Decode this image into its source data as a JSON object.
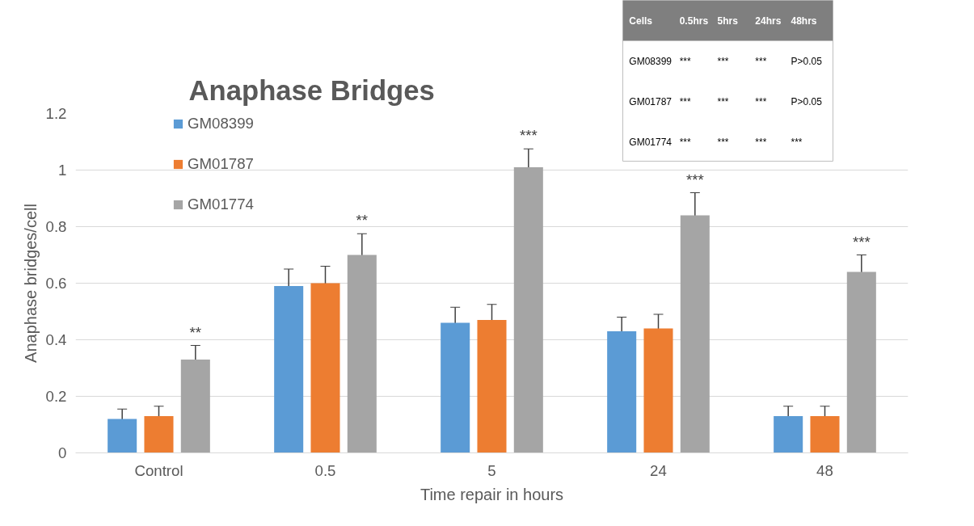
{
  "chart_data": [
    {
      "type": "bar",
      "title": "Anaphase Bridges",
      "xlabel": "Time repair in hours",
      "ylabel": "Anaphase bridges/cell",
      "categories": [
        "Control",
        "0.5",
        "5",
        "24",
        "48"
      ],
      "series": [
        {
          "name": "GM08399",
          "color": "#5b9bd5",
          "values": [
            0.12,
            0.59,
            0.46,
            0.43,
            0.13
          ],
          "errors": [
            0.035,
            0.06,
            0.055,
            0.05,
            0.035
          ]
        },
        {
          "name": "GM01787",
          "color": "#ed7d31",
          "values": [
            0.13,
            0.6,
            0.47,
            0.44,
            0.13
          ],
          "errors": [
            0.035,
            0.06,
            0.055,
            0.05,
            0.035
          ]
        },
        {
          "name": "GM01774",
          "color": "#a5a5a5",
          "values": [
            0.33,
            0.7,
            1.01,
            0.84,
            0.64
          ],
          "errors": [
            0.05,
            0.075,
            0.065,
            0.08,
            0.06
          ]
        }
      ],
      "ylim": [
        0,
        1.2
      ],
      "yticks": [
        0,
        0.2,
        0.4,
        0.6,
        0.8,
        1,
        1.2
      ],
      "grid": "y",
      "legend": "top left",
      "annotations": [
        "**",
        "**",
        "***",
        "***",
        "***"
      ]
    },
    {
      "type": "other",
      "annotations": [
        "Cells",
        "0.5hrs",
        "5hrs",
        "24hrs",
        "48hrs",
        "GM08399",
        "***",
        "***",
        "***",
        "P>0.05",
        "GM01787",
        "***",
        "***",
        "***",
        "P>0.05",
        "GM01774",
        "***",
        "***",
        "***",
        "***"
      ]
    }
  ]
}
